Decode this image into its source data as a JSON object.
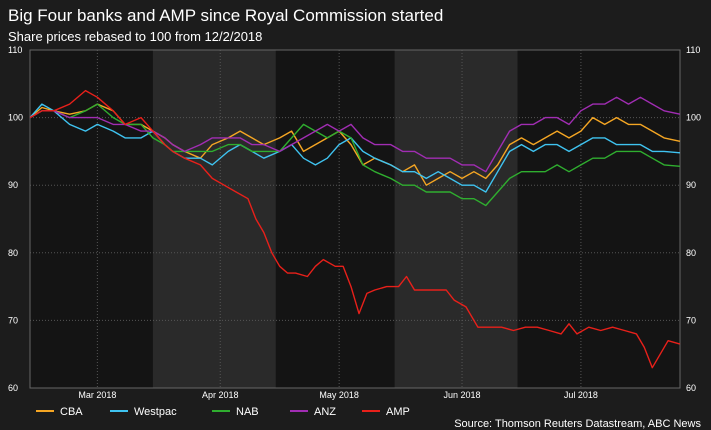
{
  "title": "Big Four banks and AMP since Royal Commission started",
  "subtitle": "Share prices rebased to 100 from 12/2/2018",
  "source": "Source: Thomson Reuters Datastream, ABC News",
  "chart_data": {
    "type": "line",
    "x_unit": "date",
    "xlim": [
      "2018-02-12",
      "2018-07-26"
    ],
    "ylim": [
      60,
      110
    ],
    "yticks": [
      60,
      70,
      80,
      90,
      100,
      110
    ],
    "yaxis_sides": [
      "left",
      "right"
    ],
    "xticks": [
      {
        "label": "Mar 2018",
        "date": "2018-03-01"
      },
      {
        "label": "Apr 2018",
        "date": "2018-04-01"
      },
      {
        "label": "May 2018",
        "date": "2018-05-01"
      },
      {
        "label": "Jun 2018",
        "date": "2018-06-01"
      },
      {
        "label": "Jul 2018",
        "date": "2018-07-01"
      }
    ],
    "shaded_months": [
      [
        "2018-03-15",
        "2018-04-15"
      ],
      [
        "2018-05-15",
        "2018-06-15"
      ]
    ],
    "grid": true,
    "legend_position": "bottom-left",
    "series": [
      {
        "name": "CBA",
        "color": "#f5a623",
        "points": [
          [
            "2018-02-12",
            100
          ],
          [
            "2018-02-15",
            101.5
          ],
          [
            "2018-02-18",
            101
          ],
          [
            "2018-02-22",
            100.5
          ],
          [
            "2018-02-26",
            101
          ],
          [
            "2018-03-01",
            102
          ],
          [
            "2018-03-05",
            101
          ],
          [
            "2018-03-08",
            99
          ],
          [
            "2018-03-12",
            99
          ],
          [
            "2018-03-15",
            98
          ],
          [
            "2018-03-18",
            97
          ],
          [
            "2018-03-20",
            96
          ],
          [
            "2018-03-23",
            95
          ],
          [
            "2018-03-27",
            94
          ],
          [
            "2018-03-30",
            96
          ],
          [
            "2018-04-03",
            97
          ],
          [
            "2018-04-06",
            98
          ],
          [
            "2018-04-09",
            97
          ],
          [
            "2018-04-12",
            96
          ],
          [
            "2018-04-16",
            97
          ],
          [
            "2018-04-19",
            98
          ],
          [
            "2018-04-22",
            95
          ],
          [
            "2018-04-25",
            96
          ],
          [
            "2018-04-28",
            97
          ],
          [
            "2018-05-01",
            98
          ],
          [
            "2018-05-04",
            96
          ],
          [
            "2018-05-07",
            93
          ],
          [
            "2018-05-10",
            94
          ],
          [
            "2018-05-14",
            93
          ],
          [
            "2018-05-17",
            92
          ],
          [
            "2018-05-20",
            93
          ],
          [
            "2018-05-23",
            90
          ],
          [
            "2018-05-26",
            91
          ],
          [
            "2018-05-29",
            92
          ],
          [
            "2018-06-01",
            91
          ],
          [
            "2018-06-04",
            92
          ],
          [
            "2018-06-07",
            91
          ],
          [
            "2018-06-10",
            93
          ],
          [
            "2018-06-13",
            96
          ],
          [
            "2018-06-16",
            97
          ],
          [
            "2018-06-19",
            96
          ],
          [
            "2018-06-22",
            97
          ],
          [
            "2018-06-25",
            98
          ],
          [
            "2018-06-28",
            97
          ],
          [
            "2018-07-01",
            98
          ],
          [
            "2018-07-04",
            100
          ],
          [
            "2018-07-07",
            99
          ],
          [
            "2018-07-10",
            100
          ],
          [
            "2018-07-13",
            99
          ],
          [
            "2018-07-16",
            99
          ],
          [
            "2018-07-19",
            98
          ],
          [
            "2018-07-22",
            97
          ],
          [
            "2018-07-26",
            96.5
          ]
        ]
      },
      {
        "name": "Westpac",
        "color": "#3fc3f0",
        "points": [
          [
            "2018-02-12",
            100
          ],
          [
            "2018-02-15",
            102
          ],
          [
            "2018-02-18",
            101
          ],
          [
            "2018-02-22",
            99
          ],
          [
            "2018-02-26",
            98
          ],
          [
            "2018-03-01",
            99
          ],
          [
            "2018-03-05",
            98
          ],
          [
            "2018-03-08",
            97
          ],
          [
            "2018-03-12",
            97
          ],
          [
            "2018-03-15",
            98
          ],
          [
            "2018-03-18",
            96
          ],
          [
            "2018-03-20",
            95
          ],
          [
            "2018-03-23",
            94
          ],
          [
            "2018-03-27",
            94
          ],
          [
            "2018-03-30",
            93
          ],
          [
            "2018-04-03",
            95
          ],
          [
            "2018-04-06",
            96
          ],
          [
            "2018-04-09",
            95
          ],
          [
            "2018-04-12",
            94
          ],
          [
            "2018-04-16",
            95
          ],
          [
            "2018-04-19",
            96
          ],
          [
            "2018-04-22",
            94
          ],
          [
            "2018-04-25",
            93
          ],
          [
            "2018-04-28",
            94
          ],
          [
            "2018-05-01",
            96
          ],
          [
            "2018-05-04",
            97
          ],
          [
            "2018-05-07",
            95
          ],
          [
            "2018-05-10",
            94
          ],
          [
            "2018-05-14",
            93
          ],
          [
            "2018-05-17",
            92
          ],
          [
            "2018-05-20",
            92
          ],
          [
            "2018-05-23",
            91
          ],
          [
            "2018-05-26",
            92
          ],
          [
            "2018-05-29",
            91
          ],
          [
            "2018-06-01",
            90
          ],
          [
            "2018-06-04",
            90
          ],
          [
            "2018-06-07",
            89
          ],
          [
            "2018-06-10",
            92
          ],
          [
            "2018-06-13",
            95
          ],
          [
            "2018-06-16",
            96
          ],
          [
            "2018-06-19",
            95
          ],
          [
            "2018-06-22",
            96
          ],
          [
            "2018-06-25",
            96
          ],
          [
            "2018-06-28",
            95
          ],
          [
            "2018-07-01",
            96
          ],
          [
            "2018-07-04",
            97
          ],
          [
            "2018-07-07",
            97
          ],
          [
            "2018-07-10",
            96
          ],
          [
            "2018-07-13",
            96
          ],
          [
            "2018-07-16",
            96
          ],
          [
            "2018-07-19",
            95
          ],
          [
            "2018-07-22",
            95
          ],
          [
            "2018-07-26",
            94.8
          ]
        ]
      },
      {
        "name": "NAB",
        "color": "#2fae2f",
        "points": [
          [
            "2018-02-12",
            100
          ],
          [
            "2018-02-15",
            101
          ],
          [
            "2018-02-18",
            101
          ],
          [
            "2018-02-22",
            100
          ],
          [
            "2018-02-26",
            101
          ],
          [
            "2018-03-01",
            102
          ],
          [
            "2018-03-05",
            100
          ],
          [
            "2018-03-08",
            99
          ],
          [
            "2018-03-12",
            99
          ],
          [
            "2018-03-15",
            97
          ],
          [
            "2018-03-18",
            96
          ],
          [
            "2018-03-20",
            95
          ],
          [
            "2018-03-23",
            95
          ],
          [
            "2018-03-27",
            95
          ],
          [
            "2018-03-30",
            95
          ],
          [
            "2018-04-03",
            96
          ],
          [
            "2018-04-06",
            96
          ],
          [
            "2018-04-09",
            95
          ],
          [
            "2018-04-12",
            95
          ],
          [
            "2018-04-16",
            95
          ],
          [
            "2018-04-19",
            97
          ],
          [
            "2018-04-22",
            99
          ],
          [
            "2018-04-25",
            98
          ],
          [
            "2018-04-28",
            97
          ],
          [
            "2018-05-01",
            98
          ],
          [
            "2018-05-04",
            97
          ],
          [
            "2018-05-07",
            93
          ],
          [
            "2018-05-10",
            92
          ],
          [
            "2018-05-14",
            91
          ],
          [
            "2018-05-17",
            90
          ],
          [
            "2018-05-20",
            90
          ],
          [
            "2018-05-23",
            89
          ],
          [
            "2018-05-26",
            89
          ],
          [
            "2018-05-29",
            89
          ],
          [
            "2018-06-01",
            88
          ],
          [
            "2018-06-04",
            88
          ],
          [
            "2018-06-07",
            87
          ],
          [
            "2018-06-10",
            89
          ],
          [
            "2018-06-13",
            91
          ],
          [
            "2018-06-16",
            92
          ],
          [
            "2018-06-19",
            92
          ],
          [
            "2018-06-22",
            92
          ],
          [
            "2018-06-25",
            93
          ],
          [
            "2018-06-28",
            92
          ],
          [
            "2018-07-01",
            93
          ],
          [
            "2018-07-04",
            94
          ],
          [
            "2018-07-07",
            94
          ],
          [
            "2018-07-10",
            95
          ],
          [
            "2018-07-13",
            95
          ],
          [
            "2018-07-16",
            95
          ],
          [
            "2018-07-19",
            94
          ],
          [
            "2018-07-22",
            93
          ],
          [
            "2018-07-26",
            92.8
          ]
        ]
      },
      {
        "name": "ANZ",
        "color": "#a12db3",
        "points": [
          [
            "2018-02-12",
            100
          ],
          [
            "2018-02-15",
            101
          ],
          [
            "2018-02-18",
            101
          ],
          [
            "2018-02-22",
            100
          ],
          [
            "2018-02-26",
            100
          ],
          [
            "2018-03-01",
            100
          ],
          [
            "2018-03-05",
            99
          ],
          [
            "2018-03-08",
            99
          ],
          [
            "2018-03-12",
            98
          ],
          [
            "2018-03-15",
            98
          ],
          [
            "2018-03-18",
            97
          ],
          [
            "2018-03-20",
            96
          ],
          [
            "2018-03-23",
            95
          ],
          [
            "2018-03-27",
            96
          ],
          [
            "2018-03-30",
            97
          ],
          [
            "2018-04-03",
            97
          ],
          [
            "2018-04-06",
            97
          ],
          [
            "2018-04-09",
            96
          ],
          [
            "2018-04-12",
            96
          ],
          [
            "2018-04-16",
            95
          ],
          [
            "2018-04-19",
            96
          ],
          [
            "2018-04-22",
            97
          ],
          [
            "2018-04-25",
            98
          ],
          [
            "2018-04-28",
            99
          ],
          [
            "2018-05-01",
            98
          ],
          [
            "2018-05-04",
            99
          ],
          [
            "2018-05-07",
            97
          ],
          [
            "2018-05-10",
            96
          ],
          [
            "2018-05-14",
            96
          ],
          [
            "2018-05-17",
            95
          ],
          [
            "2018-05-20",
            95
          ],
          [
            "2018-05-23",
            94
          ],
          [
            "2018-05-26",
            94
          ],
          [
            "2018-05-29",
            94
          ],
          [
            "2018-06-01",
            93
          ],
          [
            "2018-06-04",
            93
          ],
          [
            "2018-06-07",
            92
          ],
          [
            "2018-06-10",
            95
          ],
          [
            "2018-06-13",
            98
          ],
          [
            "2018-06-16",
            99
          ],
          [
            "2018-06-19",
            99
          ],
          [
            "2018-06-22",
            100
          ],
          [
            "2018-06-25",
            100
          ],
          [
            "2018-06-28",
            99
          ],
          [
            "2018-07-01",
            101
          ],
          [
            "2018-07-04",
            102
          ],
          [
            "2018-07-07",
            102
          ],
          [
            "2018-07-10",
            103
          ],
          [
            "2018-07-13",
            102
          ],
          [
            "2018-07-16",
            103
          ],
          [
            "2018-07-19",
            102
          ],
          [
            "2018-07-22",
            101
          ],
          [
            "2018-07-26",
            100.5
          ]
        ]
      },
      {
        "name": "AMP",
        "color": "#e8201a",
        "points": [
          [
            "2018-02-12",
            100
          ],
          [
            "2018-02-15",
            101
          ],
          [
            "2018-02-18",
            101
          ],
          [
            "2018-02-22",
            102
          ],
          [
            "2018-02-26",
            104
          ],
          [
            "2018-03-01",
            103
          ],
          [
            "2018-03-05",
            101
          ],
          [
            "2018-03-08",
            99
          ],
          [
            "2018-03-12",
            100
          ],
          [
            "2018-03-15",
            98
          ],
          [
            "2018-03-18",
            96
          ],
          [
            "2018-03-20",
            95
          ],
          [
            "2018-03-23",
            94
          ],
          [
            "2018-03-27",
            93
          ],
          [
            "2018-03-30",
            91
          ],
          [
            "2018-04-02",
            90
          ],
          [
            "2018-04-05",
            89
          ],
          [
            "2018-04-08",
            88
          ],
          [
            "2018-04-10",
            85
          ],
          [
            "2018-04-12",
            83
          ],
          [
            "2018-04-14",
            80
          ],
          [
            "2018-04-16",
            78
          ],
          [
            "2018-04-18",
            77
          ],
          [
            "2018-04-20",
            77
          ],
          [
            "2018-04-23",
            76.5
          ],
          [
            "2018-04-25",
            78
          ],
          [
            "2018-04-27",
            79
          ],
          [
            "2018-04-30",
            78
          ],
          [
            "2018-05-02",
            78
          ],
          [
            "2018-05-04",
            75
          ],
          [
            "2018-05-06",
            71
          ],
          [
            "2018-05-08",
            74
          ],
          [
            "2018-05-10",
            74.5
          ],
          [
            "2018-05-13",
            75
          ],
          [
            "2018-05-16",
            75
          ],
          [
            "2018-05-18",
            76.5
          ],
          [
            "2018-05-20",
            74.5
          ],
          [
            "2018-05-24",
            74.5
          ],
          [
            "2018-05-28",
            74.5
          ],
          [
            "2018-05-30",
            73
          ],
          [
            "2018-06-02",
            72
          ],
          [
            "2018-06-05",
            69
          ],
          [
            "2018-06-08",
            69
          ],
          [
            "2018-06-11",
            69
          ],
          [
            "2018-06-14",
            68.5
          ],
          [
            "2018-06-17",
            69
          ],
          [
            "2018-06-20",
            69
          ],
          [
            "2018-06-23",
            68.5
          ],
          [
            "2018-06-26",
            68
          ],
          [
            "2018-06-28",
            69.5
          ],
          [
            "2018-06-30",
            68
          ],
          [
            "2018-07-03",
            69
          ],
          [
            "2018-07-06",
            68.5
          ],
          [
            "2018-07-09",
            69
          ],
          [
            "2018-07-12",
            68.5
          ],
          [
            "2018-07-15",
            68
          ],
          [
            "2018-07-17",
            66
          ],
          [
            "2018-07-19",
            63
          ],
          [
            "2018-07-21",
            65
          ],
          [
            "2018-07-23",
            67
          ],
          [
            "2018-07-26",
            66.5
          ]
        ]
      }
    ]
  }
}
